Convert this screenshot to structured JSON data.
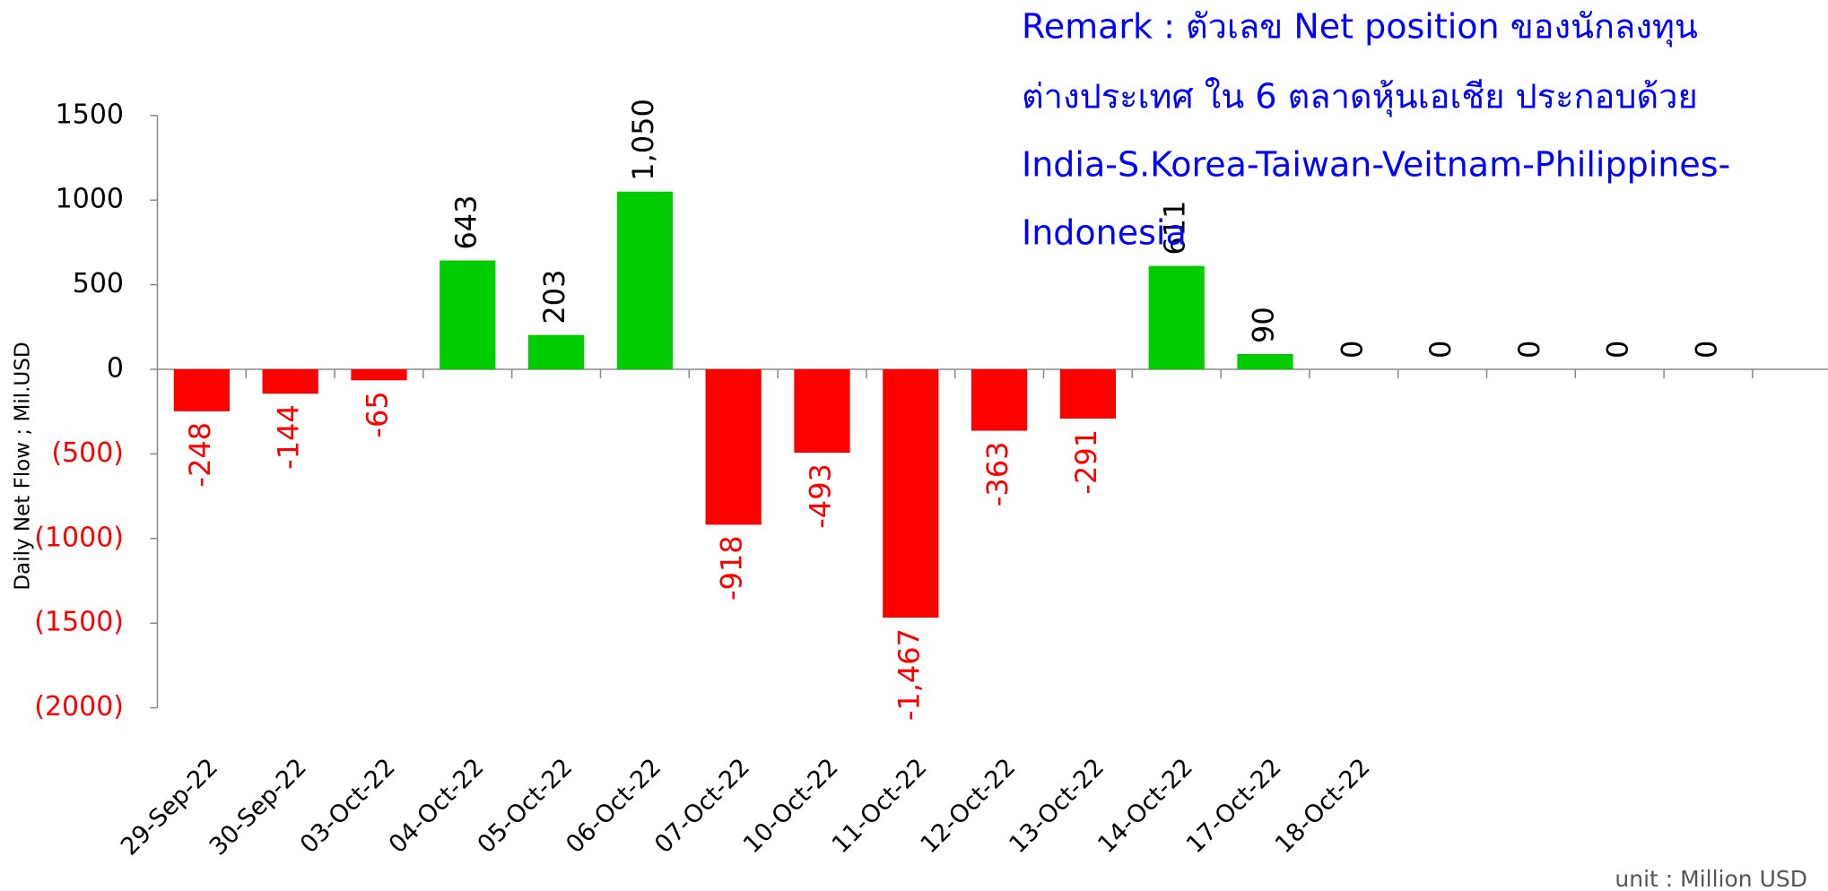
{
  "chart_data": {
    "type": "bar",
    "y_axis_label": "Daily Net Flow ; Mil.USD",
    "remark": [
      "Remark :   ตัวเลข Net  position  ของนักลงทุน",
      "ต่างประเทศ ใน 6 ตลาดหุ้นเอเชีย ประกอบด้วย",
      "India-S.Korea-Taiwan-Veitnam-Philippines-",
      "Indonesia"
    ],
    "unit_note": "unit : Million USD",
    "categories": [
      "29-Sep-22",
      "30-Sep-22",
      "03-Oct-22",
      "04-Oct-22",
      "05-Oct-22",
      "06-Oct-22",
      "07-Oct-22",
      "10-Oct-22",
      "11-Oct-22",
      "12-Oct-22",
      "13-Oct-22",
      "14-Oct-22",
      "17-Oct-22",
      "18-Oct-22",
      null,
      null,
      null,
      null
    ],
    "values": [
      -248,
      -144,
      -65,
      643,
      203,
      1050,
      -918,
      -493,
      -1467,
      -363,
      -291,
      611,
      90,
      0,
      0,
      0,
      0,
      0
    ],
    "value_labels": [
      "-248",
      "-144",
      "-65",
      "643",
      "203",
      "1,050",
      "-918",
      "-493",
      "-1,467",
      "-363",
      "-291",
      "611",
      "90",
      "0",
      "0",
      "0",
      "0",
      "0"
    ],
    "positive_color": "#00cc00",
    "negative_color": "#ff0000",
    "ylim": [
      -2000,
      1500
    ],
    "yticks": [
      1500,
      1000,
      500,
      0,
      {
        "value": -500,
        "label": "(500)"
      },
      {
        "value": -1000,
        "label": "(1000)"
      },
      {
        "value": -1500,
        "label": "(1500)"
      },
      {
        "value": -2000,
        "label": "(2000)"
      }
    ]
  }
}
